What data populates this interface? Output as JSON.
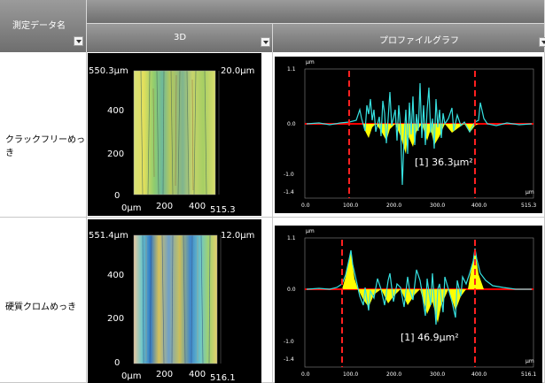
{
  "header": {
    "measurement_name": "測定データ名",
    "col_3d": "3D",
    "col_profile": "プロファイルグラフ"
  },
  "rows": [
    {
      "name": "クラックフリーめっき",
      "view3d": {
        "y_top": "550.3μm",
        "y_ticks": [
          "400",
          "200",
          "0"
        ],
        "x_labels": [
          "0μm",
          "200",
          "400"
        ],
        "x_max": "515.3",
        "z_label": "20.0μm"
      },
      "profile": {
        "unit_top": "μm",
        "y_ticks": [
          "1.1",
          "0.0",
          "-1.0",
          "-1.4"
        ],
        "x_ticks": [
          "0.0",
          "100.0",
          "200.0",
          "300.0",
          "400.0",
          "515.3"
        ],
        "x_unit": "μm",
        "area_label": "[1] 36.3μm²"
      }
    },
    {
      "name": "硬質クロムめっき",
      "view3d": {
        "y_top": "551.4μm",
        "y_ticks": [
          "400",
          "200",
          "0"
        ],
        "x_labels": [
          "0μm",
          "200",
          "400"
        ],
        "x_max": "516.1",
        "z_label": "12.0μm"
      },
      "profile": {
        "unit_top": "μm",
        "y_ticks": [
          "1.1",
          "0.0",
          "-1.0",
          "-1.4"
        ],
        "x_ticks": [
          "0.0",
          "100.0",
          "200.0",
          "300.0",
          "400.0",
          "516.1"
        ],
        "x_unit": "μm",
        "area_label": "[1] 46.9μm²"
      }
    }
  ],
  "colors": {
    "header": "#7f7f7f",
    "panel": "#000000",
    "profile_line": "#36e0e0",
    "profile_fill": "#ffff00",
    "baseline": "#ff0000",
    "marker": "#ff2020"
  }
}
